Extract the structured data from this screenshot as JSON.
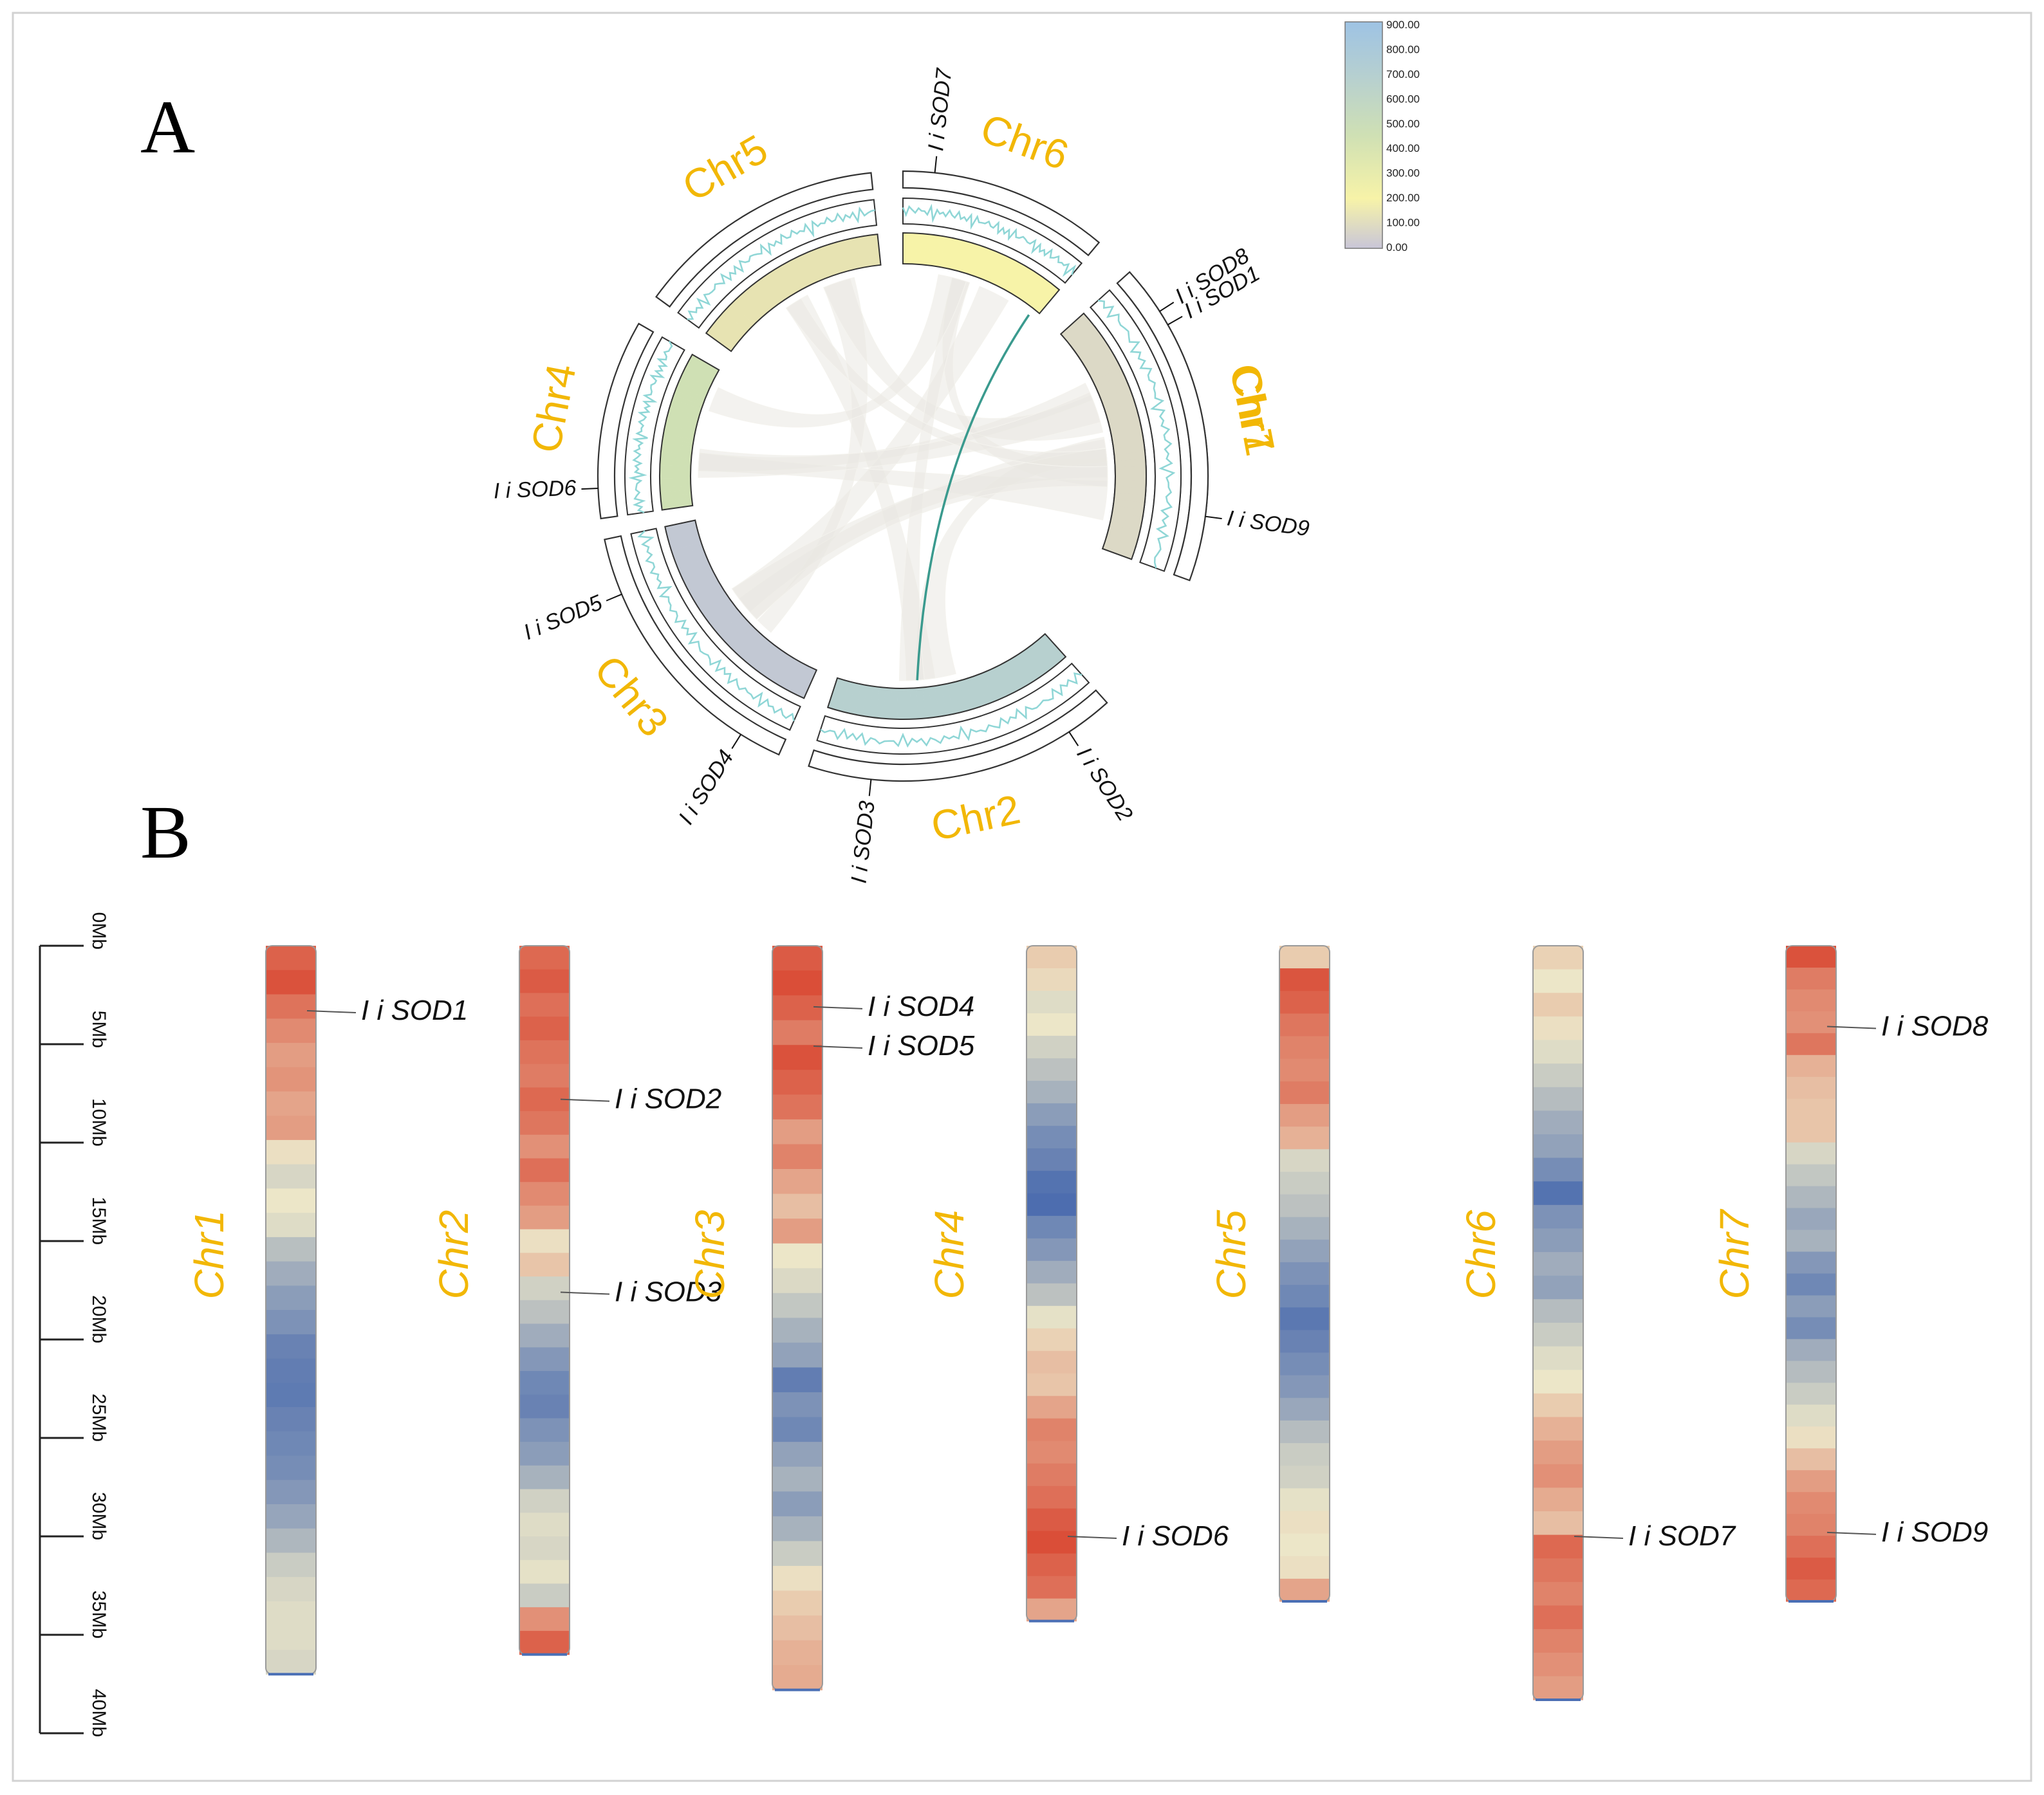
{
  "panels": {
    "a": "A",
    "b": "B"
  },
  "colors": {
    "chromosome_label": "#f2b705",
    "low_density": "#3f63ad",
    "mid_density": "#ece6c8",
    "high_density": "#d8412c",
    "link": "#e9e8e1",
    "highlight_link": "#3a9a8e",
    "gc_track": "#8fd6d6"
  },
  "legend": {
    "ticks": [
      "900.00",
      "800.00",
      "700.00",
      "600.00",
      "500.00",
      "400.00",
      "300.00",
      "200.00",
      "100.00",
      "0.00"
    ]
  },
  "circos": {
    "chromosomes": [
      {
        "id": "c1",
        "label": "Chr1",
        "genes": [
          "I i SOD1"
        ]
      },
      {
        "id": "c2",
        "label": "Chr2",
        "genes": [
          "I i SOD2",
          "I i SOD3"
        ]
      },
      {
        "id": "c3",
        "label": "Chr3",
        "genes": [
          "I i SOD4",
          "I i SOD5"
        ]
      },
      {
        "id": "c4",
        "label": "Chr4",
        "genes": [
          "I i SOD6"
        ]
      },
      {
        "id": "c5",
        "label": "Chr5",
        "genes": []
      },
      {
        "id": "c6",
        "label": "Chr6",
        "genes": [
          "I i SOD7"
        ]
      },
      {
        "id": "c7",
        "label": "Chr7",
        "genes": [
          "I i SOD8",
          "I i SOD9"
        ]
      }
    ]
  },
  "map": {
    "scale_unit": "Mb",
    "scale_ticks": [
      "0Mb",
      "5Mb",
      "10Mb",
      "15Mb",
      "20Mb",
      "25Mb",
      "30Mb",
      "35Mb",
      "40Mb"
    ],
    "scale_values": [
      0,
      5,
      10,
      15,
      20,
      25,
      30,
      35,
      40
    ],
    "chromosomes": [
      {
        "label": "Chr1",
        "length_mb": 37,
        "density": [
          0.9,
          0.95,
          0.85,
          0.78,
          0.72,
          0.75,
          0.7,
          0.72,
          0.52,
          0.44,
          0.5,
          0.46,
          0.35,
          0.28,
          0.22,
          0.18,
          0.12,
          0.1,
          0.09,
          0.12,
          0.14,
          0.16,
          0.2,
          0.25,
          0.32,
          0.4,
          0.44,
          0.46,
          0.46,
          0.44
        ],
        "genes": [
          {
            "name": "I i SOD1",
            "position_mb": 3.3
          }
        ]
      },
      {
        "label": "Chr2",
        "length_mb": 36,
        "density": [
          0.88,
          0.92,
          0.86,
          0.9,
          0.85,
          0.82,
          0.88,
          0.84,
          0.76,
          0.86,
          0.78,
          0.72,
          0.52,
          0.6,
          0.42,
          0.36,
          0.28,
          0.2,
          0.14,
          0.12,
          0.18,
          0.22,
          0.3,
          0.42,
          0.46,
          0.44,
          0.48,
          0.4,
          0.76,
          0.9
        ],
        "genes": [
          {
            "name": "I i SOD2",
            "position_mb": 7.8
          },
          {
            "name": "I i SOD3",
            "position_mb": 17.6
          }
        ]
      },
      {
        "label": "Chr3",
        "length_mb": 37.8,
        "density": [
          0.92,
          0.96,
          0.9,
          0.82,
          0.95,
          0.9,
          0.85,
          0.72,
          0.8,
          0.7,
          0.62,
          0.72,
          0.5,
          0.45,
          0.38,
          0.3,
          0.24,
          0.1,
          0.18,
          0.14,
          0.24,
          0.3,
          0.22,
          0.3,
          0.4,
          0.52,
          0.58,
          0.62,
          0.66,
          0.68
        ],
        "genes": [
          {
            "name": "I i SOD4",
            "position_mb": 3.1
          },
          {
            "name": "I i SOD5",
            "position_mb": 5.1
          }
        ]
      },
      {
        "label": "Chr4",
        "length_mb": 34.3,
        "density": [
          0.58,
          0.54,
          0.46,
          0.5,
          0.42,
          0.36,
          0.3,
          0.22,
          0.16,
          0.12,
          0.06,
          0.04,
          0.14,
          0.2,
          0.28,
          0.36,
          0.48,
          0.56,
          0.62,
          0.6,
          0.7,
          0.8,
          0.78,
          0.82,
          0.86,
          0.92,
          0.96,
          0.9,
          0.86,
          0.7
        ],
        "genes": [
          {
            "name": "I i SOD6",
            "position_mb": 30.0
          }
        ]
      },
      {
        "label": "Chr5",
        "length_mb": 33.3,
        "density": [
          0.58,
          0.94,
          0.9,
          0.84,
          0.8,
          0.78,
          0.82,
          0.72,
          0.66,
          0.44,
          0.4,
          0.36,
          0.3,
          0.24,
          0.18,
          0.14,
          0.08,
          0.12,
          0.16,
          0.2,
          0.26,
          0.34,
          0.4,
          0.42,
          0.48,
          0.52,
          0.5,
          0.52,
          0.7
        ],
        "genes": []
      },
      {
        "label": "Chr6",
        "length_mb": 38.3,
        "density": [
          0.56,
          0.5,
          0.58,
          0.52,
          0.46,
          0.4,
          0.34,
          0.28,
          0.24,
          0.16,
          0.06,
          0.18,
          0.22,
          0.28,
          0.24,
          0.34,
          0.4,
          0.46,
          0.5,
          0.58,
          0.66,
          0.72,
          0.76,
          0.68,
          0.62,
          0.88,
          0.84,
          0.8,
          0.86,
          0.8,
          0.76,
          0.72
        ],
        "genes": [
          {
            "name": "I i SOD7",
            "position_mb": 30.0
          }
        ]
      },
      {
        "label": "Chr7",
        "length_mb": 33.3,
        "density": [
          0.95,
          0.82,
          0.78,
          0.76,
          0.84,
          0.66,
          0.62,
          0.6,
          0.6,
          0.44,
          0.38,
          0.32,
          0.26,
          0.3,
          0.2,
          0.14,
          0.22,
          0.16,
          0.28,
          0.34,
          0.4,
          0.46,
          0.52,
          0.62,
          0.72,
          0.78,
          0.8,
          0.86,
          0.92,
          0.88
        ],
        "genes": [
          {
            "name": "I i SOD8",
            "position_mb": 4.1
          },
          {
            "name": "I i SOD9",
            "position_mb": 29.8
          }
        ]
      }
    ]
  }
}
